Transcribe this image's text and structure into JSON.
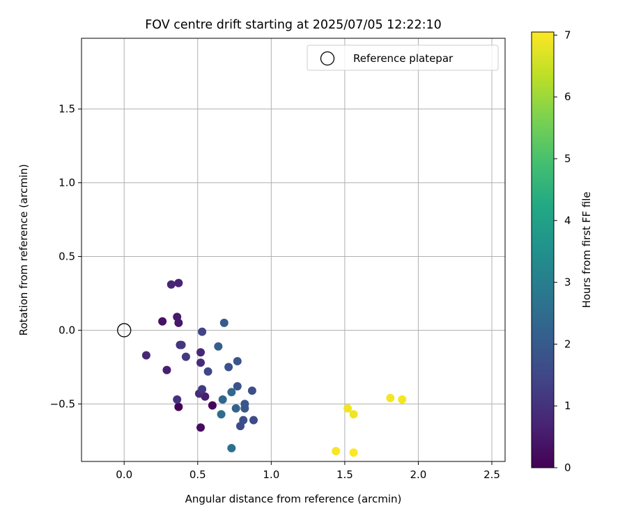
{
  "chart_data": {
    "type": "scatter",
    "title": "FOV centre drift starting at 2025/07/05 12:22:10",
    "xlabel": "Angular distance from reference (arcmin)",
    "ylabel": "Rotation from reference (arcmin)",
    "xlim": [
      -0.29,
      2.59
    ],
    "ylim": [
      -0.89,
      1.98
    ],
    "xticks": [
      "0.0",
      "0.5",
      "1.0",
      "1.5",
      "2.0",
      "2.5"
    ],
    "xtick_values": [
      0,
      0.5,
      1.0,
      1.5,
      2.0,
      2.5
    ],
    "yticks": [
      "−0.5",
      "0.0",
      "0.5",
      "1.0",
      "1.5"
    ],
    "ytick_values": [
      -0.5,
      0,
      0.5,
      1.0,
      1.5
    ],
    "grid": true,
    "legend": {
      "label": "Reference platepar",
      "placement": "top-right"
    },
    "reference_point": {
      "x": 0.0,
      "y": 0.0
    },
    "colorbar": {
      "label": "Hours from first FF file",
      "min": 0,
      "max": 7.05,
      "ticks": [
        "0",
        "1",
        "2",
        "3",
        "4",
        "5",
        "6",
        "7"
      ],
      "tick_values": [
        0,
        1,
        2,
        3,
        4,
        5,
        6,
        7
      ],
      "colormap": "viridis"
    },
    "points": [
      {
        "x": 0.37,
        "y": -0.52,
        "hours": 0.05
      },
      {
        "x": 0.6,
        "y": -0.51,
        "hours": 0.1
      },
      {
        "x": 0.52,
        "y": -0.66,
        "hours": 0.25
      },
      {
        "x": 0.26,
        "y": 0.06,
        "hours": 0.35
      },
      {
        "x": 0.37,
        "y": 0.05,
        "hours": 0.45
      },
      {
        "x": 0.36,
        "y": 0.09,
        "hours": 0.5
      },
      {
        "x": 0.29,
        "y": -0.27,
        "hours": 0.6
      },
      {
        "x": 0.55,
        "y": -0.45,
        "hours": 0.6
      },
      {
        "x": 0.37,
        "y": 0.32,
        "hours": 0.7
      },
      {
        "x": 0.32,
        "y": 0.31,
        "hours": 0.75
      },
      {
        "x": 0.15,
        "y": -0.17,
        "hours": 0.8
      },
      {
        "x": 0.52,
        "y": -0.15,
        "hours": 0.8
      },
      {
        "x": 0.51,
        "y": -0.43,
        "hours": 0.85
      },
      {
        "x": 0.52,
        "y": -0.22,
        "hours": 0.9
      },
      {
        "x": 0.36,
        "y": -0.47,
        "hours": 1.0
      },
      {
        "x": 0.38,
        "y": -0.1,
        "hours": 1.0
      },
      {
        "x": 0.39,
        "y": -0.1,
        "hours": 1.1
      },
      {
        "x": 0.42,
        "y": -0.18,
        "hours": 1.2
      },
      {
        "x": 0.53,
        "y": -0.4,
        "hours": 1.2
      },
      {
        "x": 0.53,
        "y": -0.01,
        "hours": 1.4
      },
      {
        "x": 0.57,
        "y": -0.28,
        "hours": 1.5
      },
      {
        "x": 0.79,
        "y": -0.65,
        "hours": 1.6
      },
      {
        "x": 0.88,
        "y": -0.61,
        "hours": 1.6
      },
      {
        "x": 0.81,
        "y": -0.61,
        "hours": 1.7
      },
      {
        "x": 0.87,
        "y": -0.41,
        "hours": 1.7
      },
      {
        "x": 0.71,
        "y": -0.25,
        "hours": 1.8
      },
      {
        "x": 0.77,
        "y": -0.38,
        "hours": 1.8
      },
      {
        "x": 0.77,
        "y": -0.21,
        "hours": 1.85
      },
      {
        "x": 0.82,
        "y": -0.5,
        "hours": 1.9
      },
      {
        "x": 0.82,
        "y": -0.53,
        "hours": 1.9
      },
      {
        "x": 0.68,
        "y": 0.05,
        "hours": 2.0
      },
      {
        "x": 0.64,
        "y": -0.11,
        "hours": 2.1
      },
      {
        "x": 0.76,
        "y": -0.53,
        "hours": 2.2
      },
      {
        "x": 0.67,
        "y": -0.47,
        "hours": 2.3
      },
      {
        "x": 0.73,
        "y": -0.42,
        "hours": 2.4
      },
      {
        "x": 0.66,
        "y": -0.57,
        "hours": 2.5
      },
      {
        "x": 0.73,
        "y": -0.8,
        "hours": 2.6
      },
      {
        "x": 1.52,
        "y": -0.53,
        "hours": 6.9
      },
      {
        "x": 1.56,
        "y": -0.57,
        "hours": 6.9
      },
      {
        "x": 1.81,
        "y": -0.46,
        "hours": 6.95
      },
      {
        "x": 1.89,
        "y": -0.47,
        "hours": 6.95
      },
      {
        "x": 1.44,
        "y": -0.82,
        "hours": 7.0
      },
      {
        "x": 1.56,
        "y": -0.83,
        "hours": 7.05
      }
    ]
  }
}
